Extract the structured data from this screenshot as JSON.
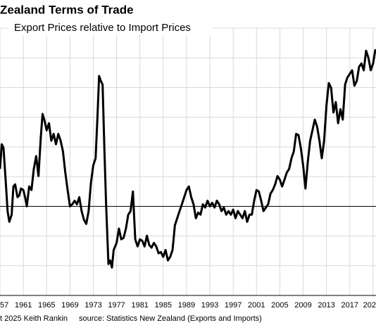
{
  "chart_data": {
    "type": "line",
    "title": "Zealand Terms of Trade",
    "subtitle": "Export Prices relative to Import Prices",
    "credit": "t 2025 Keith Rankin",
    "source": "source: Statistics New Zealand (Exports and Imports)",
    "xlim": [
      1957,
      2021.5
    ],
    "ylim": [
      70,
      160
    ],
    "grid_values": [
      70,
      80,
      90,
      100,
      110,
      120,
      130,
      140,
      150,
      160
    ],
    "reference_line": 100,
    "color": "#000000",
    "xticks": [
      {
        "value": 1957,
        "label": "57"
      },
      1961,
      1965,
      1969,
      1973,
      1977,
      1981,
      1985,
      1989,
      1993,
      1997,
      2001,
      2005,
      2009,
      2013,
      2017,
      {
        "value": 2021,
        "label": "202"
      }
    ],
    "x": [
      1957.0,
      1957.3,
      1957.6,
      1958.0,
      1958.3,
      1958.6,
      1959.0,
      1959.3,
      1959.6,
      1960.0,
      1960.3,
      1960.6,
      1961.0,
      1961.3,
      1961.6,
      1962.0,
      1962.4,
      1962.8,
      1963.2,
      1963.6,
      1964.0,
      1964.3,
      1964.6,
      1965.0,
      1965.4,
      1965.8,
      1966.2,
      1966.6,
      1967.0,
      1967.4,
      1967.8,
      1968.2,
      1968.6,
      1969.0,
      1969.4,
      1969.8,
      1970.2,
      1970.6,
      1971.0,
      1971.4,
      1971.8,
      1972.2,
      1972.6,
      1973.0,
      1973.4,
      1973.7,
      1974.0,
      1974.3,
      1974.6,
      1974.9,
      1975.2,
      1975.6,
      1975.9,
      1976.2,
      1976.5,
      1977.0,
      1977.4,
      1977.8,
      1978.2,
      1978.6,
      1979.0,
      1979.4,
      1979.8,
      1980.2,
      1980.6,
      1981.0,
      1981.4,
      1981.8,
      1982.2,
      1982.6,
      1983.0,
      1983.4,
      1983.8,
      1984.2,
      1984.6,
      1985.0,
      1985.4,
      1985.8,
      1986.2,
      1986.6,
      1987.0,
      1987.4,
      1987.8,
      1988.2,
      1988.6,
      1989.0,
      1989.4,
      1989.8,
      1990.2,
      1990.6,
      1991.0,
      1991.4,
      1991.8,
      1992.2,
      1992.6,
      1993.0,
      1993.4,
      1993.8,
      1994.2,
      1994.6,
      1995.0,
      1995.4,
      1995.8,
      1996.2,
      1996.6,
      1997.0,
      1997.4,
      1997.8,
      1998.2,
      1998.6,
      1999.0,
      1999.4,
      1999.8,
      2000.2,
      2000.6,
      2001.0,
      2001.4,
      2001.8,
      2002.2,
      2002.6,
      2003.0,
      2003.4,
      2003.8,
      2004.2,
      2004.6,
      2005.0,
      2005.4,
      2005.8,
      2006.2,
      2006.6,
      2007.0,
      2007.4,
      2007.8,
      2008.2,
      2008.6,
      2009.0,
      2009.4,
      2009.8,
      2010.2,
      2010.6,
      2011.0,
      2011.4,
      2011.8,
      2012.2,
      2012.6,
      2013.0,
      2013.4,
      2013.8,
      2014.2,
      2014.6,
      2015.0,
      2015.4,
      2015.8,
      2016.2,
      2016.6,
      2017.0,
      2017.4,
      2017.8,
      2018.2,
      2018.6,
      2019.0,
      2019.4,
      2019.8,
      2020.2,
      2020.6,
      2021.0,
      2021.4
    ],
    "values": [
      112.6,
      120.9,
      119.7,
      107.9,
      98.4,
      94.8,
      97.2,
      106.7,
      107.4,
      103.1,
      103.6,
      106,
      105.5,
      103.1,
      100,
      106.7,
      105.5,
      112.6,
      116.9,
      110.2,
      123.3,
      131.1,
      129.2,
      125.6,
      128,
      122.1,
      124.4,
      120.9,
      124.4,
      122.1,
      118.5,
      111.4,
      105.5,
      100,
      100.7,
      101.9,
      100.7,
      103.1,
      98.4,
      95.5,
      94.1,
      98.4,
      107.9,
      113.8,
      116.2,
      129.2,
      143.9,
      142.2,
      141,
      119.7,
      100.7,
      80.6,
      81.8,
      79.4,
      85.3,
      87.7,
      92.5,
      88.9,
      89.4,
      92.5,
      97.2,
      98.4,
      105,
      88.9,
      86.5,
      88.9,
      88.4,
      86.5,
      90.1,
      87,
      86.1,
      87.7,
      86.5,
      84.2,
      84.6,
      83,
      85.3,
      81.8,
      83,
      85.3,
      93.6,
      96,
      98.4,
      100.7,
      103.1,
      105.5,
      106.7,
      103.1,
      100.7,
      96,
      97.9,
      97.2,
      100.7,
      99.6,
      101.9,
      100,
      101.2,
      99.6,
      101.9,
      100.7,
      98.4,
      99.6,
      97.2,
      98.4,
      97.2,
      98.9,
      96,
      98.4,
      97.2,
      96,
      98.4,
      94.8,
      97.2,
      97.2,
      101.9,
      105.5,
      105,
      101.9,
      98.4,
      99.6,
      100.7,
      104.3,
      105.5,
      107.4,
      110.2,
      109,
      106.7,
      109,
      111.4,
      112.6,
      116.2,
      118.5,
      124.4,
      124,
      119.7,
      113.8,
      106,
      115,
      122.1,
      125.6,
      129.2,
      126.8,
      122.1,
      116.2,
      122.1,
      133.9,
      141.5,
      139.9,
      131.6,
      135.1,
      128,
      132.7,
      129.2,
      141,
      143.4,
      144.6,
      145.8,
      140.6,
      142.2,
      147,
      148.1,
      145.8,
      152.4,
      150,
      145.8,
      148.1,
      152.9
    ]
  }
}
